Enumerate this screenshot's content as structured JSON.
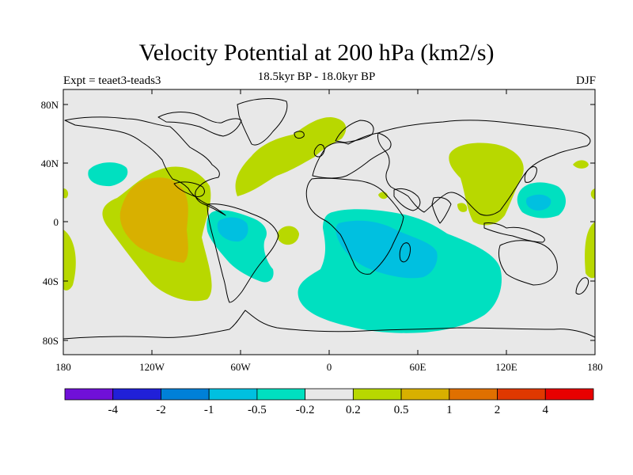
{
  "title": "Velocity Potential at 200 hPa (km2/s)",
  "subtitle": "18.5kyr BP - 18.0kyr BP",
  "experiment": "Expt = teaet3-teads3",
  "season": "DJF",
  "chart_data": {
    "type": "map",
    "variable": "Velocity Potential at 200 hPa",
    "units": "km2/s",
    "period": "18.5kyr BP - 18.0kyr BP",
    "season": "DJF",
    "lon_range": [
      -180,
      180
    ],
    "lat_range": [
      -90,
      90
    ],
    "x_ticks": [
      "180",
      "120W",
      "60W",
      "0",
      "60E",
      "120E",
      "180"
    ],
    "y_ticks": [
      "80N",
      "40N",
      "0",
      "40S",
      "80S"
    ],
    "colorbar": {
      "labels": [
        "-4",
        "-2",
        "-1",
        "-0.5",
        "-0.2",
        "0.2",
        "0.5",
        "1",
        "2",
        "4"
      ],
      "colors": [
        "#7010d8",
        "#2020d8",
        "#0080d8",
        "#00c0e0",
        "#00e0c0",
        "#e8e8e8",
        "#b8d800",
        "#d8b000",
        "#e07000",
        "#e03800",
        "#e80000"
      ]
    },
    "anomalies": [
      {
        "region": "Eastern Pacific",
        "sign": "positive",
        "level": "0.5 to 1"
      },
      {
        "region": "South America / Tropical Atlantic",
        "sign": "negative",
        "level": "-0.5 to -1"
      },
      {
        "region": "Southern Africa / Southern Ocean",
        "sign": "negative",
        "level": "-0.5 to -1"
      },
      {
        "region": "North Atlantic",
        "sign": "positive",
        "level": "0.2 to 0.5"
      },
      {
        "region": "East Asia",
        "sign": "positive",
        "level": "0.2 to 0.5"
      },
      {
        "region": "Western Pacific",
        "sign": "negative",
        "level": "-0.5 to -1"
      }
    ]
  }
}
